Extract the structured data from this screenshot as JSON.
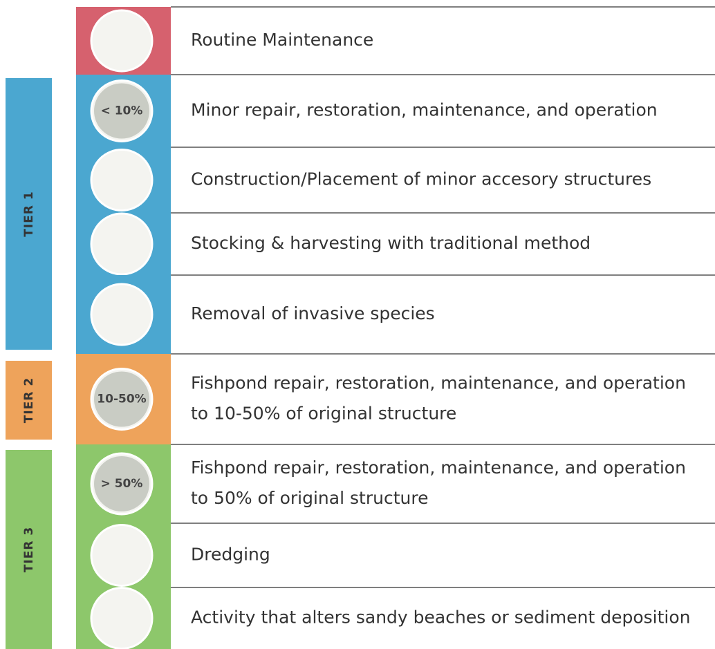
{
  "tiers": [
    {
      "label": "TIER 1"
    },
    {
      "label": "TIER 2"
    },
    {
      "label": "TIER 3"
    }
  ],
  "rows": [
    {
      "text": [
        "Routine Maintenance"
      ]
    },
    {
      "text": [
        "Minor repair, restoration, maintenance, and operation"
      ],
      "icon_label": "< 10%"
    },
    {
      "text": [
        "Construction/Placement of minor accesory structures"
      ]
    },
    {
      "text": [
        "Stocking & harvesting with traditional method"
      ]
    },
    {
      "text": [
        "Removal of invasive species"
      ]
    },
    {
      "text": [
        "Fishpond repair, restoration, maintenance, and operation",
        "to 10-50% of original structure"
      ],
      "icon_label": "10-50%"
    },
    {
      "text": [
        "Fishpond repair, restoration, maintenance, and operation",
        "to  50% of original structure"
      ],
      "icon_label": "> 50%"
    },
    {
      "text": [
        "Dredging"
      ]
    },
    {
      "text": [
        "Activity that alters sandy beaches or sediment deposition"
      ]
    }
  ]
}
